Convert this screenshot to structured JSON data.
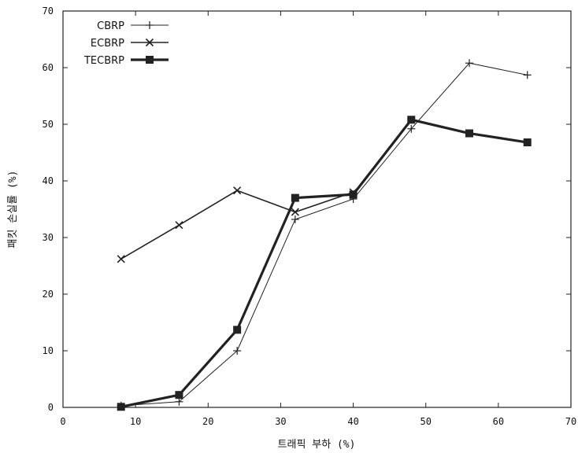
{
  "chart_data": {
    "type": "line",
    "title": "",
    "xlabel": "트래픽 부하 (%)",
    "ylabel": "패킷 손실률 (%)",
    "xlim": [
      0,
      70
    ],
    "ylim": [
      0,
      70
    ],
    "x_ticks": [
      0,
      10,
      20,
      30,
      40,
      50,
      60,
      70
    ],
    "y_ticks": [
      0,
      10,
      20,
      30,
      40,
      50,
      60,
      70
    ],
    "grid": false,
    "legend_position": "top-left",
    "series": [
      {
        "name": "CBRP",
        "marker": "plus",
        "color": "#222222",
        "line": "thin",
        "points": [
          [
            8,
            0.3
          ],
          [
            16,
            1.0
          ],
          [
            24,
            10.0
          ],
          [
            32,
            33.2
          ],
          [
            40,
            36.8
          ],
          [
            48,
            49.2
          ],
          [
            56,
            60.8
          ],
          [
            64,
            58.7
          ]
        ]
      },
      {
        "name": "ECBRP",
        "marker": "cross",
        "color": "#222222",
        "line": "medium",
        "points": [
          [
            8,
            26.2
          ],
          [
            16,
            32.2
          ],
          [
            24,
            38.3
          ],
          [
            32,
            34.5
          ],
          [
            40,
            38.0
          ]
        ]
      },
      {
        "name": "TECBRP",
        "marker": "square",
        "color": "#222222",
        "line": "thick",
        "points": [
          [
            8,
            0.1
          ],
          [
            16,
            2.2
          ],
          [
            24,
            13.7
          ],
          [
            32,
            37.0
          ],
          [
            40,
            37.6
          ],
          [
            48,
            50.8
          ],
          [
            56,
            48.4
          ],
          [
            64,
            46.8
          ]
        ]
      }
    ]
  }
}
